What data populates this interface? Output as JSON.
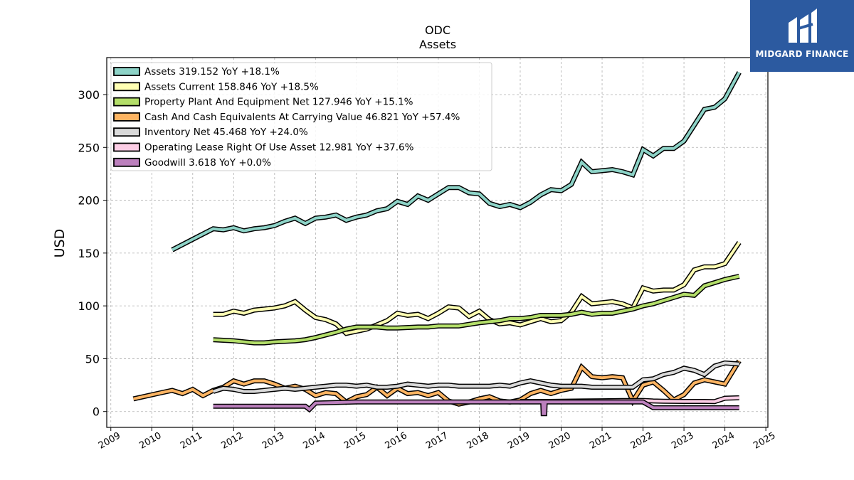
{
  "brand": {
    "name": "MIDGARD FINANCE",
    "color": "#2c5aa0"
  },
  "chart_data": {
    "type": "line",
    "title": "ODC",
    "subtitle": "Assets",
    "xlabel": "",
    "ylabel": "USD",
    "xlim": [
      2008.9,
      2025.05
    ],
    "ylim": [
      -15,
      335
    ],
    "xticks": [
      2009,
      2010,
      2011,
      2012,
      2013,
      2014,
      2015,
      2016,
      2017,
      2018,
      2019,
      2020,
      2021,
      2022,
      2023,
      2024,
      2025
    ],
    "yticks": [
      0,
      50,
      100,
      150,
      200,
      250,
      300
    ],
    "grid": true,
    "legend_position": "top-left",
    "series": [
      {
        "name": "Assets",
        "legend": "Assets  319.152 YoY +18.1%",
        "color": "#8dd3c7",
        "x": [
          2010.5,
          2011.0,
          2011.5,
          2011.75,
          2012.0,
          2012.25,
          2012.5,
          2012.75,
          2013.0,
          2013.25,
          2013.5,
          2013.75,
          2014.0,
          2014.25,
          2014.5,
          2014.75,
          2015.0,
          2015.25,
          2015.5,
          2015.75,
          2016.0,
          2016.25,
          2016.5,
          2016.75,
          2017.0,
          2017.25,
          2017.5,
          2017.75,
          2018.0,
          2018.25,
          2018.5,
          2018.75,
          2019.0,
          2019.25,
          2019.5,
          2019.75,
          2020.0,
          2020.25,
          2020.5,
          2020.75,
          2021.0,
          2021.25,
          2021.5,
          2021.75,
          2022.0,
          2022.25,
          2022.5,
          2022.75,
          2023.0,
          2023.25,
          2023.5,
          2023.75,
          2024.0,
          2024.35
        ],
        "y": [
          153,
          163,
          173,
          172,
          174,
          171,
          173,
          174,
          176,
          180,
          183,
          178,
          183,
          184,
          186,
          181,
          184,
          186,
          190,
          192,
          199,
          196,
          204,
          200,
          206,
          212,
          212,
          207,
          206,
          197,
          194,
          196,
          193,
          198,
          205,
          210,
          209,
          215,
          236,
          227,
          228,
          229,
          227,
          224,
          248,
          242,
          249,
          249,
          256,
          271,
          286,
          288,
          296,
          321
        ]
      },
      {
        "name": "Assets Current",
        "legend": "Assets Current  158.846 YoY +18.5%",
        "color": "#ffffb3",
        "x": [
          2011.5,
          2011.75,
          2012.0,
          2012.25,
          2012.5,
          2012.75,
          2013.0,
          2013.25,
          2013.5,
          2013.75,
          2014.0,
          2014.25,
          2014.5,
          2014.75,
          2015.0,
          2015.25,
          2015.5,
          2015.75,
          2016.0,
          2016.25,
          2016.5,
          2016.75,
          2017.0,
          2017.25,
          2017.5,
          2017.75,
          2018.0,
          2018.25,
          2018.5,
          2018.75,
          2019.0,
          2019.25,
          2019.5,
          2019.75,
          2020.0,
          2020.25,
          2020.5,
          2020.75,
          2021.0,
          2021.25,
          2021.5,
          2021.75,
          2022.0,
          2022.25,
          2022.5,
          2022.75,
          2023.0,
          2023.25,
          2023.5,
          2023.75,
          2024.0,
          2024.35
        ],
        "y": [
          92,
          92,
          95,
          93,
          96,
          97,
          98,
          100,
          104,
          96,
          89,
          87,
          83,
          74,
          76,
          78,
          82,
          86,
          93,
          91,
          92,
          88,
          93,
          99,
          98,
          90,
          95,
          87,
          83,
          84,
          82,
          85,
          88,
          85,
          86,
          94,
          109,
          102,
          103,
          104,
          102,
          98,
          117,
          114,
          115,
          115,
          120,
          134,
          137,
          137,
          140,
          160
        ]
      },
      {
        "name": "Property Plant And Equipment Net",
        "legend": "Property Plant And Equipment Net  127.946 YoY +15.1%",
        "color": "#bebada",
        "stroke": "#b3de69",
        "x": [
          2011.5,
          2012.0,
          2012.25,
          2012.5,
          2012.75,
          2013.0,
          2013.5,
          2013.75,
          2014.0,
          2014.5,
          2014.75,
          2015.0,
          2015.5,
          2015.75,
          2016.0,
          2016.5,
          2016.75,
          2017.0,
          2017.25,
          2017.5,
          2018.0,
          2018.25,
          2018.5,
          2018.75,
          2019.0,
          2019.25,
          2019.5,
          2019.75,
          2020.0,
          2020.25,
          2020.5,
          2020.75,
          2021.0,
          2021.25,
          2021.5,
          2021.75,
          2022.0,
          2022.25,
          2022.5,
          2022.75,
          2023.0,
          2023.25,
          2023.5,
          2023.75,
          2024.0,
          2024.35
        ],
        "y": [
          68,
          67,
          66,
          65,
          65,
          66,
          67,
          68,
          70,
          75,
          78,
          80,
          80,
          79,
          79,
          80,
          80,
          81,
          81,
          81,
          84,
          85,
          86,
          88,
          88,
          89,
          91,
          91,
          91,
          92,
          94,
          92,
          93,
          93,
          95,
          97,
          100,
          102,
          105,
          108,
          111,
          110,
          119,
          122,
          125,
          128
        ]
      },
      {
        "name": "Cash And Cash Equivalents At Carrying Value",
        "legend": "Cash And Cash Equivalents At Carrying Value  46.821 YoY +57.4%",
        "color": "#fdb462",
        "x": [
          2009.55,
          2010.25,
          2010.5,
          2010.75,
          2011.0,
          2011.25,
          2011.5,
          2011.75,
          2012.0,
          2012.25,
          2012.5,
          2012.75,
          2013.0,
          2013.25,
          2013.5,
          2013.75,
          2014.0,
          2014.25,
          2014.5,
          2014.75,
          2015.0,
          2015.25,
          2015.5,
          2015.75,
          2016.0,
          2016.25,
          2016.5,
          2016.75,
          2017.0,
          2017.25,
          2017.5,
          2017.75,
          2018.0,
          2018.25,
          2018.5,
          2018.75,
          2019.0,
          2019.25,
          2019.5,
          2019.75,
          2020.0,
          2020.25,
          2020.5,
          2020.75,
          2021.0,
          2021.25,
          2021.5,
          2021.75,
          2022.0,
          2022.25,
          2022.5,
          2022.75,
          2023.0,
          2023.25,
          2023.5,
          2023.75,
          2024.0,
          2024.35
        ],
        "y": [
          12,
          18,
          20,
          17,
          21,
          15,
          20,
          23,
          29,
          26,
          29,
          29,
          26,
          22,
          24,
          21,
          15,
          18,
          17,
          9,
          14,
          16,
          23,
          15,
          22,
          17,
          18,
          15,
          18,
          10,
          7,
          9,
          12,
          14,
          10,
          9,
          11,
          17,
          20,
          17,
          20,
          22,
          42,
          33,
          32,
          33,
          32,
          10,
          25,
          28,
          20,
          11,
          16,
          27,
          30,
          28,
          26,
          48
        ]
      },
      {
        "name": "Inventory Net",
        "legend": "Inventory Net  45.468 YoY +24.0%",
        "color": "#d9d9d9",
        "x": [
          2011.5,
          2011.75,
          2012.0,
          2012.25,
          2012.5,
          2012.75,
          2013.0,
          2013.25,
          2013.5,
          2013.75,
          2014.0,
          2014.25,
          2014.5,
          2014.75,
          2015.0,
          2015.25,
          2015.5,
          2015.75,
          2016.0,
          2016.25,
          2016.5,
          2016.75,
          2017.0,
          2017.25,
          2017.5,
          2017.75,
          2018.0,
          2018.25,
          2018.5,
          2018.75,
          2019.0,
          2019.25,
          2019.5,
          2019.75,
          2020.0,
          2020.25,
          2020.5,
          2020.75,
          2021.0,
          2021.25,
          2021.5,
          2021.75,
          2022.0,
          2022.25,
          2022.5,
          2022.75,
          2023.0,
          2023.25,
          2023.5,
          2023.75,
          2024.0,
          2024.35
        ],
        "y": [
          19,
          22,
          21,
          19,
          19,
          20,
          21,
          22,
          21,
          22,
          23,
          24,
          25,
          25,
          24,
          25,
          23,
          23,
          24,
          26,
          25,
          24,
          25,
          25,
          24,
          24,
          24,
          24,
          25,
          24,
          27,
          29,
          27,
          25,
          24,
          24,
          24,
          23,
          23,
          23,
          23,
          23,
          30,
          31,
          35,
          37,
          41,
          39,
          35,
          43,
          46,
          45
        ]
      },
      {
        "name": "Operating Lease Right Of Use Asset",
        "legend": "Operating Lease Right Of Use Asset  12.981 YoY +37.6%",
        "color": "#fccde5",
        "x": [
          2019.0,
          2019.5,
          2020.0,
          2020.5,
          2021.0,
          2021.5,
          2022.0,
          2022.25,
          2022.5,
          2023.0,
          2023.5,
          2023.75,
          2024.0,
          2024.35
        ],
        "y": [
          9.5,
          9.5,
          9.8,
          10.0,
          10.2,
          10.4,
          10.5,
          10.0,
          9.8,
          9.6,
          9.6,
          9.4,
          12.6,
          13.0
        ]
      },
      {
        "name": "Goodwill",
        "legend": "Goodwill  3.618 YoY +0.0%",
        "color": "#bc80bd",
        "x": [
          2011.5,
          2012.0,
          2013.0,
          2013.75,
          2013.85,
          2014.0,
          2015.0,
          2016.0,
          2017.0,
          2018.0,
          2019.0,
          2019.55,
          2019.56,
          2019.6,
          2019.61,
          2020.0,
          2021.0,
          2022.0,
          2022.25,
          2023.0,
          2024.0,
          2024.35
        ],
        "y": [
          5,
          5,
          5,
          5,
          2,
          8,
          9,
          9,
          9,
          9,
          9,
          9,
          -2,
          -2,
          9,
          9,
          9,
          9,
          3.6,
          3.6,
          3.6,
          3.6
        ]
      }
    ]
  }
}
